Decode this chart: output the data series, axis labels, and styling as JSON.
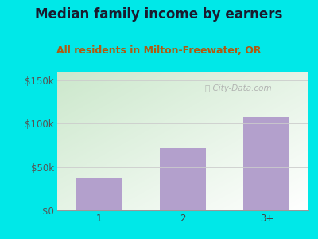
{
  "title": "Median family income by earners",
  "subtitle": "All residents in Milton-Freewater, OR",
  "categories": [
    "1",
    "2",
    "3+"
  ],
  "values": [
    38000,
    72000,
    108000
  ],
  "bar_color": "#b3a0cc",
  "title_color": "#1a1a2e",
  "subtitle_color": "#b05a10",
  "yticks": [
    0,
    50000,
    100000,
    150000
  ],
  "ytick_labels": [
    "$0",
    "$50k",
    "$100k",
    "$150k"
  ],
  "ylim": [
    0,
    160000
  ],
  "bg_outer": "#00e8e8",
  "watermark": "City-Data.com",
  "title_fontsize": 12,
  "subtitle_fontsize": 9,
  "tick_fontsize": 8.5
}
